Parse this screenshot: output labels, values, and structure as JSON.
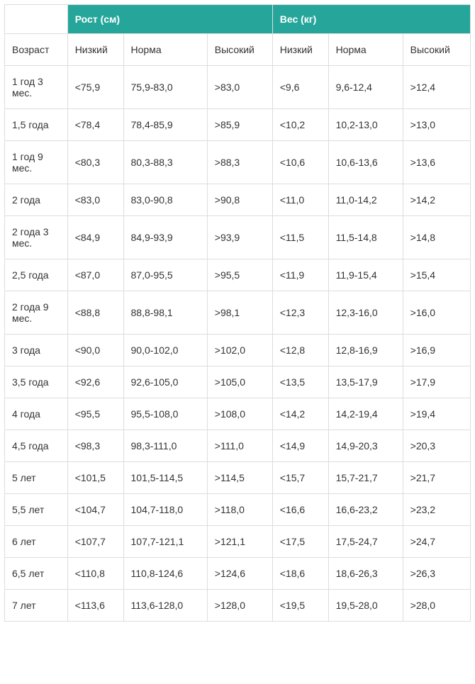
{
  "header": {
    "group1": "Рост (см)",
    "group2": "Вес (кг)",
    "age_label": "Возраст",
    "low_label": "Низкий",
    "norm_label": "Норма",
    "high_label": "Высокий"
  },
  "colors": {
    "header_bg": "#26a69a",
    "header_text": "#ffffff",
    "border": "#dddddd",
    "cell_text": "#333333",
    "cell_bg": "#ffffff"
  },
  "rows": [
    {
      "age": "1 год 3 мес.",
      "h_low": "<75,9",
      "h_norm": "75,9-83,0",
      "h_high": ">83,0",
      "w_low": "<9,6",
      "w_norm": "9,6-12,4",
      "w_high": ">12,4"
    },
    {
      "age": "1,5 года",
      "h_low": "<78,4",
      "h_norm": "78,4-85,9",
      "h_high": ">85,9",
      "w_low": "<10,2",
      "w_norm": "10,2-13,0",
      "w_high": ">13,0"
    },
    {
      "age": "1 год 9 мес.",
      "h_low": "<80,3",
      "h_norm": "80,3-88,3",
      "h_high": ">88,3",
      "w_low": "<10,6",
      "w_norm": "10,6-13,6",
      "w_high": ">13,6"
    },
    {
      "age": "2 года",
      "h_low": "<83,0",
      "h_norm": "83,0-90,8",
      "h_high": ">90,8",
      "w_low": "<11,0",
      "w_norm": "11,0-14,2",
      "w_high": ">14,2"
    },
    {
      "age": "2 года 3 мес.",
      "h_low": "<84,9",
      "h_norm": "84,9-93,9",
      "h_high": ">93,9",
      "w_low": "<11,5",
      "w_norm": "11,5-14,8",
      "w_high": ">14,8"
    },
    {
      "age": "2,5 года",
      "h_low": "<87,0",
      "h_norm": "87,0-95,5",
      "h_high": ">95,5",
      "w_low": "<11,9",
      "w_norm": "11,9-15,4",
      "w_high": ">15,4"
    },
    {
      "age": "2 года 9 мес.",
      "h_low": "<88,8",
      "h_norm": "88,8-98,1",
      "h_high": ">98,1",
      "w_low": "<12,3",
      "w_norm": "12,3-16,0",
      "w_high": ">16,0"
    },
    {
      "age": "3 года",
      "h_low": "<90,0",
      "h_norm": "90,0-102,0",
      "h_high": ">102,0",
      "w_low": "<12,8",
      "w_norm": "12,8-16,9",
      "w_high": ">16,9"
    },
    {
      "age": "3,5 года",
      "h_low": "<92,6",
      "h_norm": "92,6-105,0",
      "h_high": ">105,0",
      "w_low": "<13,5",
      "w_norm": "13,5-17,9",
      "w_high": ">17,9"
    },
    {
      "age": "4 года",
      "h_low": "<95,5",
      "h_norm": "95,5-108,0",
      "h_high": ">108,0",
      "w_low": "<14,2",
      "w_norm": "14,2-19,4",
      "w_high": ">19,4"
    },
    {
      "age": "4,5 года",
      "h_low": "<98,3",
      "h_norm": "98,3-111,0",
      "h_high": ">111,0",
      "w_low": "<14,9",
      "w_norm": "14,9-20,3",
      "w_high": ">20,3"
    },
    {
      "age": "5 лет",
      "h_low": "<101,5",
      "h_norm": "101,5-114,5",
      "h_high": ">114,5",
      "w_low": "<15,7",
      "w_norm": "15,7-21,7",
      "w_high": ">21,7"
    },
    {
      "age": "5,5 лет",
      "h_low": "<104,7",
      "h_norm": "104,7-118,0",
      "h_high": ">118,0",
      "w_low": "<16,6",
      "w_norm": "16,6-23,2",
      "w_high": ">23,2"
    },
    {
      "age": "6 лет",
      "h_low": "<107,7",
      "h_norm": "107,7-121,1",
      "h_high": ">121,1",
      "w_low": "<17,5",
      "w_norm": "17,5-24,7",
      "w_high": ">24,7"
    },
    {
      "age": "6,5 лет",
      "h_low": "<110,8",
      "h_norm": "110,8-124,6",
      "h_high": ">124,6",
      "w_low": "<18,6",
      "w_norm": "18,6-26,3",
      "w_high": ">26,3"
    },
    {
      "age": "7 лет",
      "h_low": "<113,6",
      "h_norm": "113,6-128,0",
      "h_high": ">128,0",
      "w_low": "<19,5",
      "w_norm": "19,5-28,0",
      "w_high": ">28,0"
    }
  ]
}
